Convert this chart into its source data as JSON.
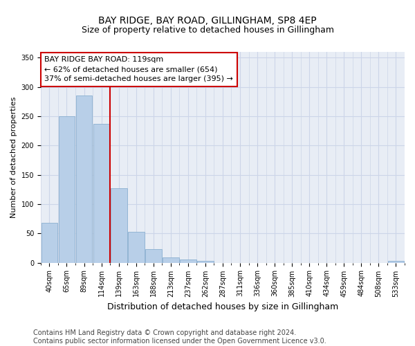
{
  "title": "BAY RIDGE, BAY ROAD, GILLINGHAM, SP8 4EP",
  "subtitle": "Size of property relative to detached houses in Gillingham",
  "xlabel": "Distribution of detached houses by size in Gillingham",
  "ylabel": "Number of detached properties",
  "categories": [
    "40sqm",
    "65sqm",
    "89sqm",
    "114sqm",
    "139sqm",
    "163sqm",
    "188sqm",
    "213sqm",
    "237sqm",
    "262sqm",
    "287sqm",
    "311sqm",
    "336sqm",
    "360sqm",
    "385sqm",
    "410sqm",
    "434sqm",
    "459sqm",
    "484sqm",
    "508sqm",
    "533sqm"
  ],
  "values": [
    68,
    250,
    285,
    237,
    127,
    53,
    23,
    9,
    5,
    3,
    0,
    0,
    0,
    0,
    0,
    0,
    0,
    0,
    0,
    0,
    3
  ],
  "bar_color": "#b8cfe8",
  "bar_edge_color": "#8aafd0",
  "bar_linewidth": 0.6,
  "vline_index": 3,
  "vline_color": "#cc0000",
  "vline_linewidth": 1.5,
  "annotation_text_line1": "BAY RIDGE BAY ROAD: 119sqm",
  "annotation_text_line2": "← 62% of detached houses are smaller (654)",
  "annotation_text_line3": "37% of semi-detached houses are larger (395) →",
  "ylim": [
    0,
    360
  ],
  "yticks": [
    0,
    50,
    100,
    150,
    200,
    250,
    300,
    350
  ],
  "grid_color": "#ccd5e8",
  "bg_color": "#e8edf5",
  "plot_bg_color": "#e8edf5",
  "footnote_line1": "Contains HM Land Registry data © Crown copyright and database right 2024.",
  "footnote_line2": "Contains public sector information licensed under the Open Government Licence v3.0.",
  "title_fontsize": 10,
  "subtitle_fontsize": 9,
  "xlabel_fontsize": 9,
  "ylabel_fontsize": 8,
  "tick_fontsize": 7,
  "annotation_fontsize": 8,
  "footnote_fontsize": 7
}
